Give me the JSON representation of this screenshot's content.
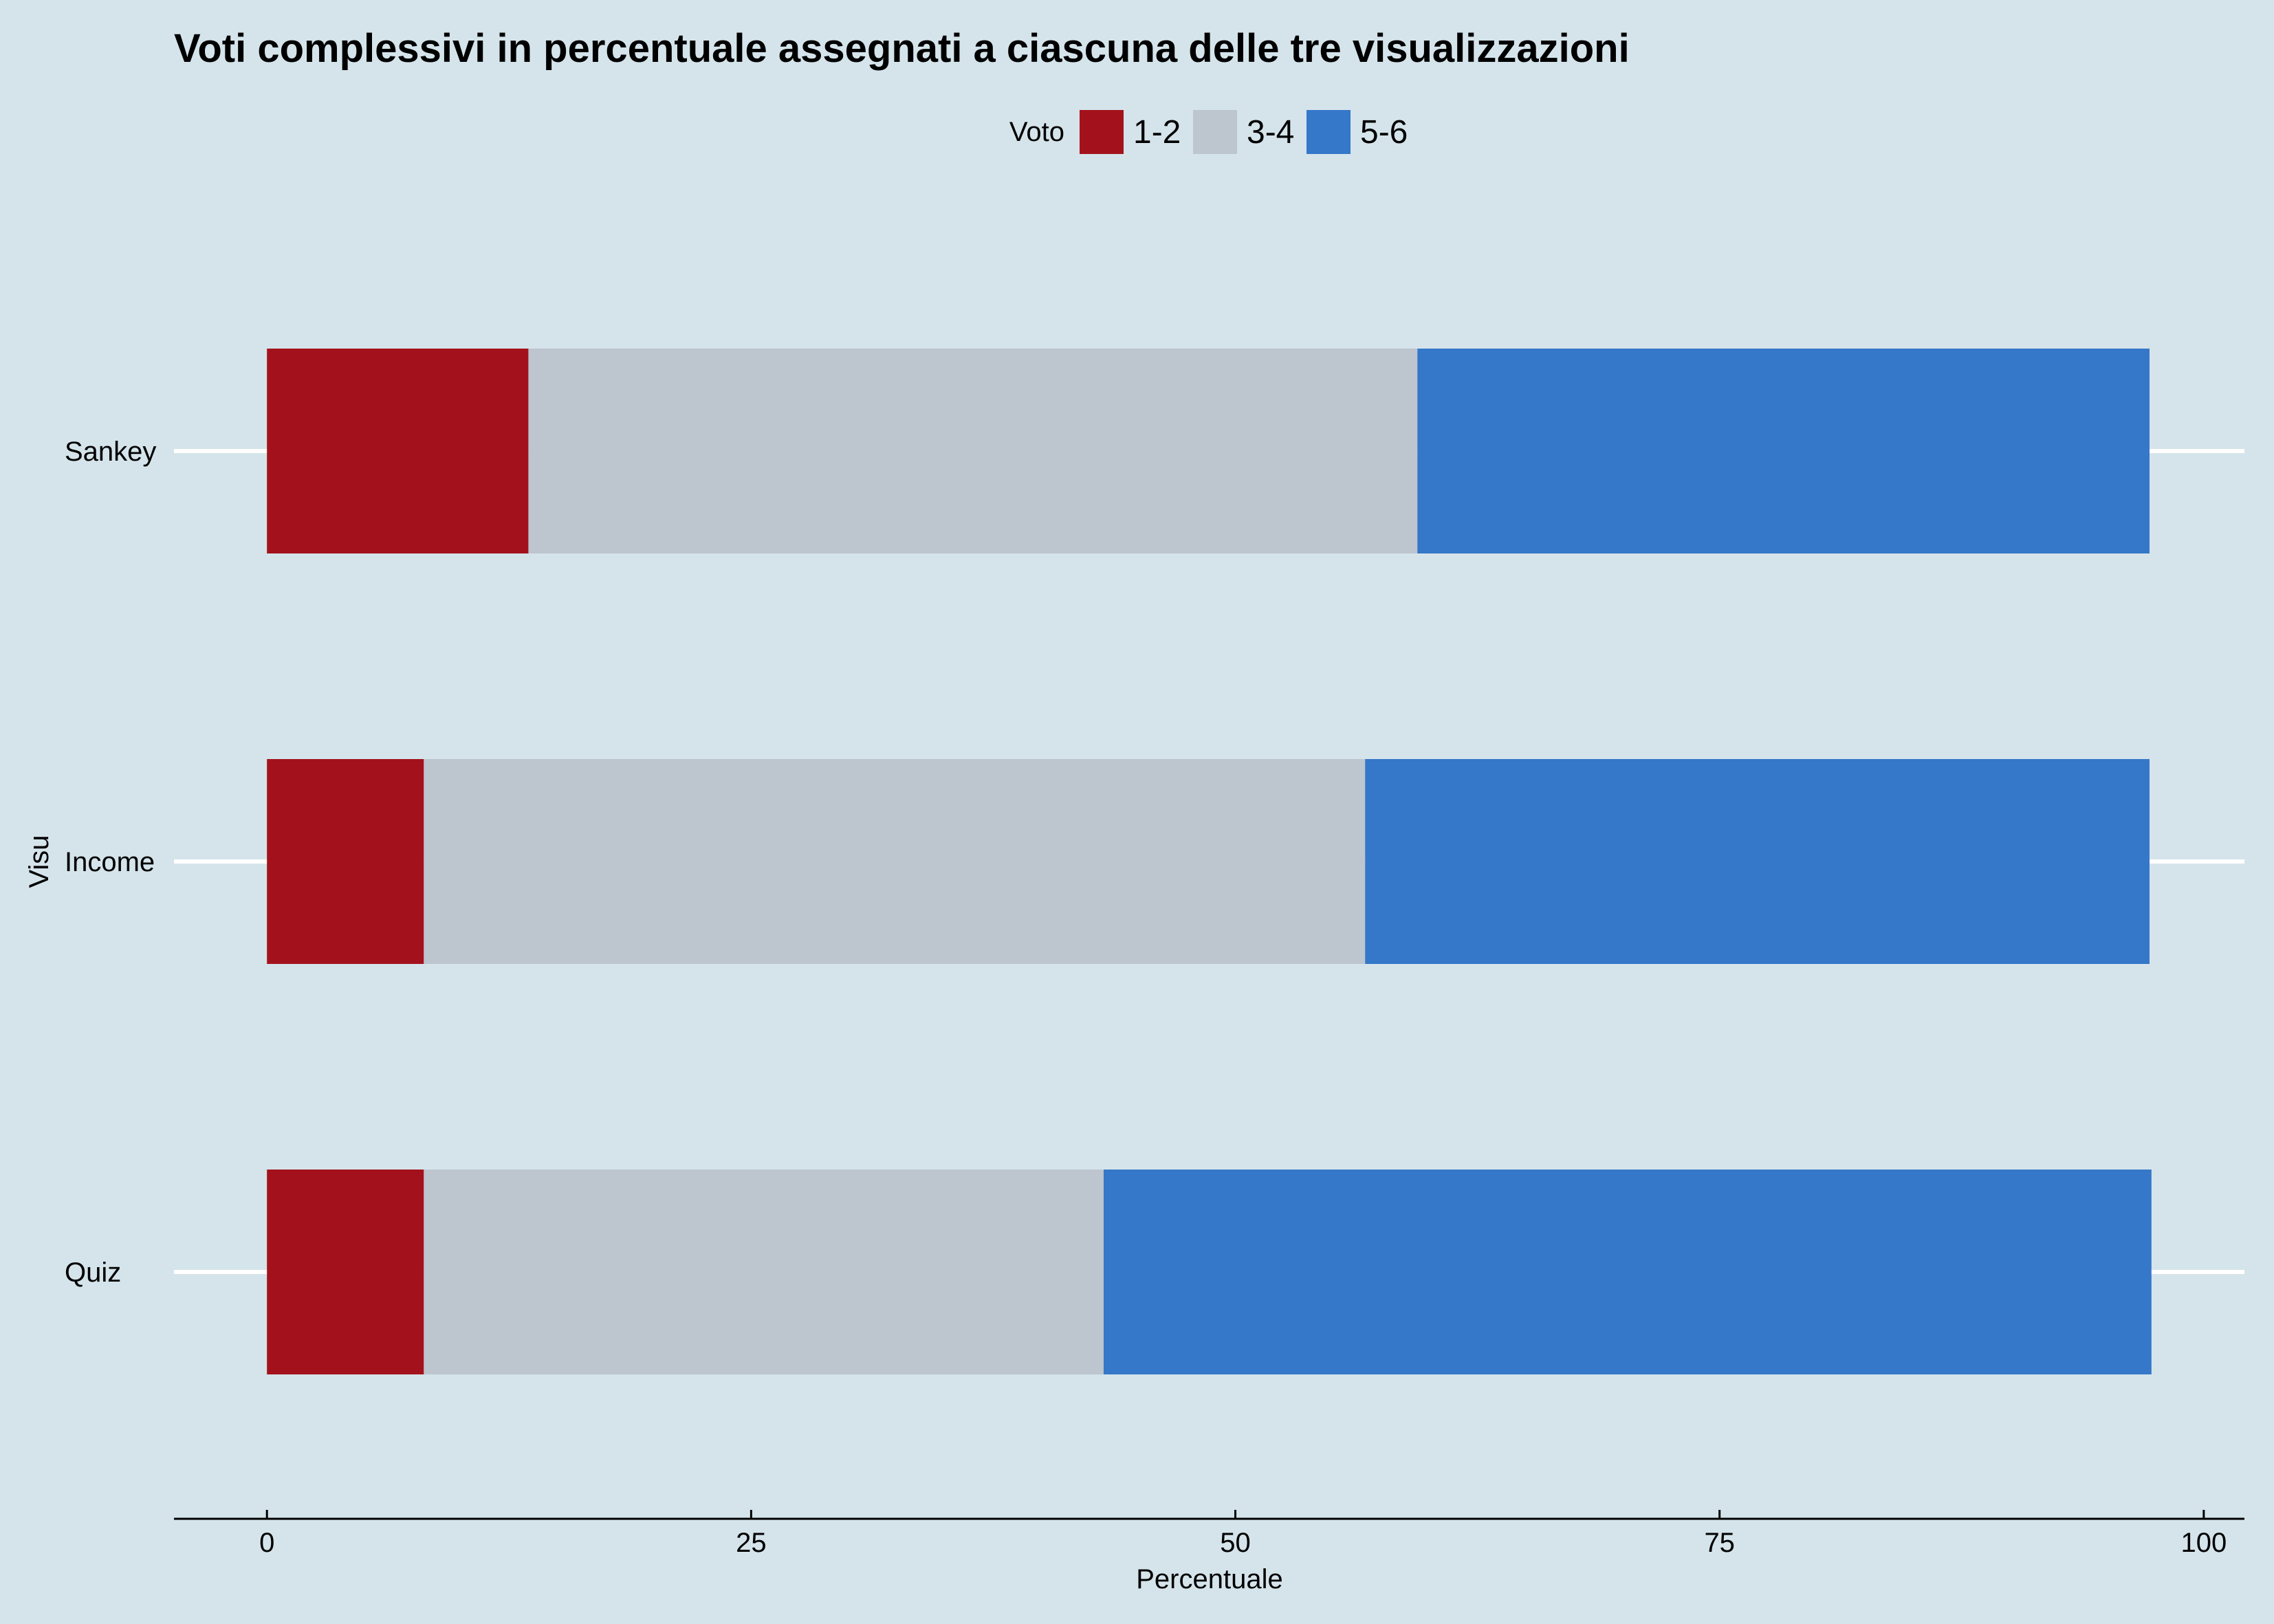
{
  "chart_data": {
    "type": "bar",
    "orientation": "horizontal",
    "stacked": true,
    "title": "Voti complessivi in percentuale assegnati a ciascuna delle tre visualizzazioni",
    "xlabel": "Percentuale",
    "ylabel": "Visu",
    "xlim": [
      -4.8,
      102.1
    ],
    "xticks": [
      "0",
      "25",
      "50",
      "75",
      "100"
    ],
    "categories": [
      "Sankey",
      "Income",
      "Quiz"
    ],
    "legend": {
      "title": "Voto",
      "position": "top"
    },
    "grid": "horizontal lines at categories",
    "background_color": "#d5e4eb",
    "series": [
      {
        "name": "1-2",
        "color": "#a3121c",
        "values": [
          13.5,
          8.1,
          8.1
        ]
      },
      {
        "name": "3-4",
        "color": "#bdc5cf",
        "values": [
          45.9,
          48.6,
          35.1
        ]
      },
      {
        "name": "5-6",
        "color": "#3577c8",
        "values": [
          37.8,
          40.5,
          54.1
        ]
      }
    ]
  }
}
